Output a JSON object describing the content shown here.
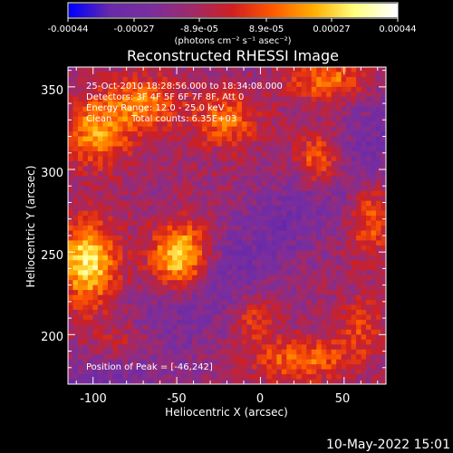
{
  "colors": {
    "background": "#000000",
    "foreground": "#ffffff",
    "colormap": [
      "#0000ff",
      "#6a2aa8",
      "#7a2e9e",
      "#a02a6a",
      "#d02020",
      "#ff5a00",
      "#ffb000",
      "#ffff80",
      "#ffffff"
    ]
  },
  "colorbar": {
    "tick_labels": [
      "-0.00044",
      "-0.00027",
      "-8.9e-05",
      "8.9e-05",
      "0.00027",
      "0.00044"
    ],
    "unit_label": "(photons cm⁻² s⁻¹ asec⁻²)",
    "range": [
      -0.00044,
      0.00044
    ]
  },
  "chart_data": {
    "type": "heatmap",
    "title": "Reconstructed RHESSI Image",
    "xlabel": "Heliocentric X (arcsec)",
    "ylabel": "Heliocentric Y (arcsec)",
    "xlim": [
      -115,
      75
    ],
    "ylim": [
      170,
      362
    ],
    "xticks": [
      -100,
      -50,
      0,
      50
    ],
    "yticks": [
      200,
      250,
      300,
      350
    ],
    "annotations": {
      "time_range": "25-Oct-2010 18:28:56.000 to 18:34:08.000",
      "detectors": "Detectors: 3F 4F 5F 6F 7F 8F, Att 0",
      "energy_range": "Energy Range: 12.0 - 25.0 keV",
      "method": "Clean",
      "total_counts": "Total counts: 6.35E+03",
      "peak": "Position of Peak = [-46,242]"
    },
    "peak": {
      "x": -46,
      "y": 242
    },
    "features": [
      {
        "x": -103,
        "y": 244,
        "amp": 0.00044,
        "sx": 12,
        "sy": 18
      },
      {
        "x": -48,
        "y": 247,
        "amp": 0.00044,
        "sx": 12,
        "sy": 14
      },
      {
        "x": -98,
        "y": 322,
        "amp": 0.0003,
        "sx": 14,
        "sy": 14
      },
      {
        "x": -70,
        "y": 340,
        "amp": 0.00026,
        "sx": 16,
        "sy": 12
      },
      {
        "x": -20,
        "y": 330,
        "amp": 0.00024,
        "sx": 14,
        "sy": 12
      },
      {
        "x": 35,
        "y": 305,
        "amp": 0.0003,
        "sx": 10,
        "sy": 12
      },
      {
        "x": 40,
        "y": 355,
        "amp": 0.00026,
        "sx": 16,
        "sy": 9
      },
      {
        "x": 65,
        "y": 270,
        "amp": 0.00022,
        "sx": 9,
        "sy": 16
      },
      {
        "x": 25,
        "y": 185,
        "amp": 0.00026,
        "sx": 20,
        "sy": 9
      },
      {
        "x": -80,
        "y": 195,
        "amp": 0.00018,
        "sx": 16,
        "sy": 10
      },
      {
        "x": -5,
        "y": 210,
        "amp": 0.00016,
        "sx": 10,
        "sy": 10
      },
      {
        "x": 60,
        "y": 205,
        "amp": 0.00018,
        "sx": 9,
        "sy": 12
      }
    ]
  },
  "footer": {
    "date": "10-May-2022 15:01"
  }
}
